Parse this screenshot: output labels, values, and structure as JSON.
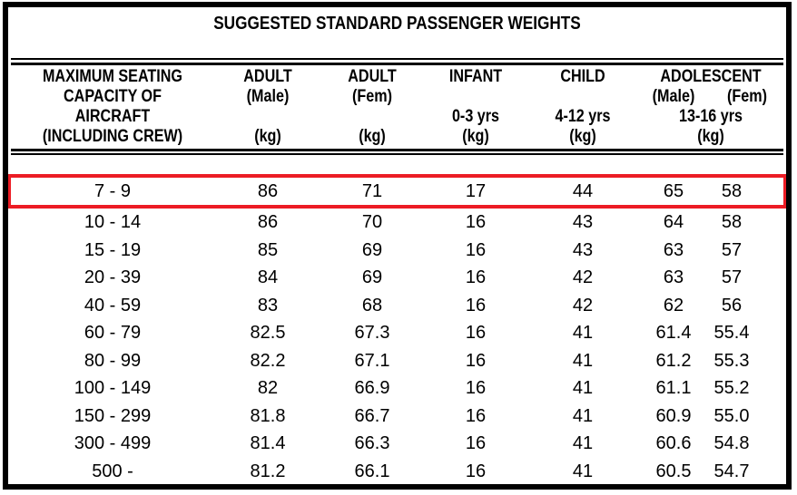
{
  "colors": {
    "frame": "#000000",
    "background": "#ffffff",
    "text": "#000000",
    "highlight_border": "#ec1c24"
  },
  "title": "SUGGESTED STANDARD PASSENGER WEIGHTS",
  "header": {
    "capacity": {
      "line1": "MAXIMUM SEATING",
      "line2": "CAPACITY OF",
      "line3": "AIRCRAFT",
      "line4": "(INCLUDING CREW)"
    },
    "adult_male": {
      "line1": "ADULT",
      "line2": "(Male)",
      "line4": "(kg)"
    },
    "adult_fem": {
      "line1": "ADULT",
      "line2": "(Fem)",
      "line4": "(kg)"
    },
    "infant": {
      "line1": "INFANT",
      "line3": "0-3 yrs",
      "line4": "(kg)"
    },
    "child": {
      "line1": "CHILD",
      "line3": "4-12 yrs",
      "line4": "(kg)"
    },
    "adolescent": {
      "line1": "ADOLESCENT",
      "male": "(Male)",
      "fem": "(Fem)",
      "line3": "13-16 yrs",
      "line4": "(kg)"
    }
  },
  "rows": [
    {
      "cells": [
        "7 - 9",
        "86",
        "71",
        "17",
        "44",
        "65",
        "58"
      ],
      "highlighted": true
    },
    {
      "cells": [
        "10 - 14",
        "86",
        "70",
        "16",
        "43",
        "64",
        "58"
      ],
      "highlighted": false
    },
    {
      "cells": [
        "15 - 19",
        "85",
        "69",
        "16",
        "43",
        "63",
        "57"
      ],
      "highlighted": false
    },
    {
      "cells": [
        "20 - 39",
        "84",
        "69",
        "16",
        "42",
        "63",
        "57"
      ],
      "highlighted": false
    },
    {
      "cells": [
        "40 - 59",
        "83",
        "68",
        "16",
        "42",
        "62",
        "56"
      ],
      "highlighted": false
    },
    {
      "cells": [
        "60 - 79",
        "82.5",
        "67.3",
        "16",
        "41",
        "61.4",
        "55.4"
      ],
      "highlighted": false
    },
    {
      "cells": [
        "80 - 99",
        "82.2",
        "67.1",
        "16",
        "41",
        "61.2",
        "55.3"
      ],
      "highlighted": false
    },
    {
      "cells": [
        "100 - 149",
        "82",
        "66.9",
        "16",
        "41",
        "61.1",
        "55.2"
      ],
      "highlighted": false
    },
    {
      "cells": [
        "150 - 299",
        "81.8",
        "66.7",
        "16",
        "41",
        "60.9",
        "55.0"
      ],
      "highlighted": false
    },
    {
      "cells": [
        "300 - 499",
        "81.4",
        "66.3",
        "16",
        "41",
        "60.6",
        "54.8"
      ],
      "highlighted": false
    },
    {
      "cells": [
        "500 -",
        "81.2",
        "66.1",
        "16",
        "41",
        "60.5",
        "54.7"
      ],
      "highlighted": false
    }
  ]
}
